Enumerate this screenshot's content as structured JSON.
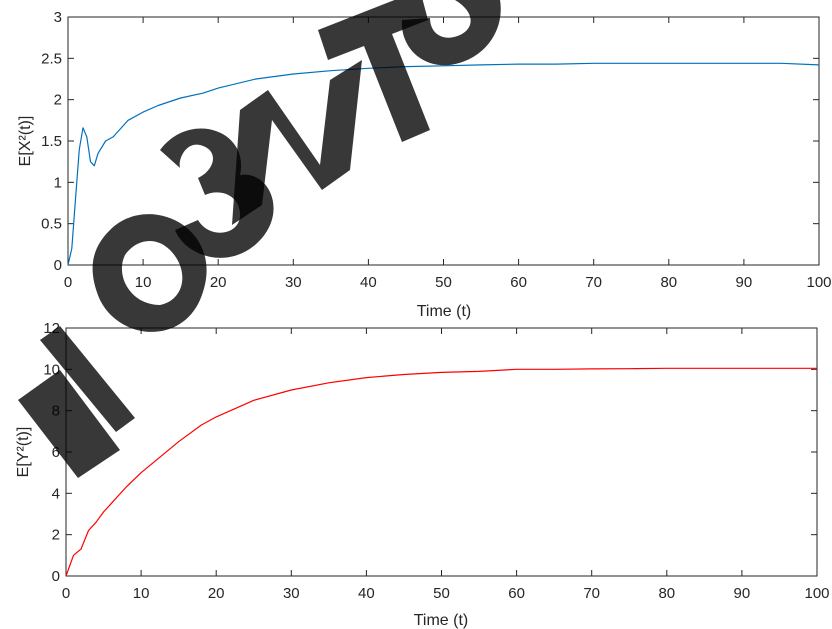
{
  "chart_data": [
    {
      "type": "line",
      "xlabel": "Time (t)",
      "ylabel": "E[X²(t)]",
      "xlim": [
        0,
        100
      ],
      "ylim": [
        0,
        3
      ],
      "xticks": [
        0,
        10,
        20,
        30,
        40,
        50,
        60,
        70,
        80,
        90,
        100
      ],
      "yticks": [
        0,
        0.5,
        1,
        1.5,
        2,
        2.5,
        3
      ],
      "grid": false,
      "legend": "none",
      "series": [
        {
          "color": "#0072BD",
          "x": [
            0,
            0.5,
            1,
            1.5,
            2,
            2.5,
            3,
            3.5,
            4,
            5,
            6,
            7,
            8,
            10,
            12,
            15,
            18,
            20,
            25,
            30,
            35,
            40,
            45,
            50,
            55,
            60,
            65,
            70,
            75,
            80,
            85,
            90,
            95,
            100
          ],
          "y": [
            0,
            0.2,
            0.8,
            1.4,
            1.66,
            1.55,
            1.25,
            1.2,
            1.35,
            1.5,
            1.55,
            1.65,
            1.75,
            1.85,
            1.93,
            2.02,
            2.08,
            2.14,
            2.25,
            2.31,
            2.35,
            2.38,
            2.4,
            2.41,
            2.42,
            2.43,
            2.43,
            2.44,
            2.44,
            2.44,
            2.44,
            2.44,
            2.44,
            2.42
          ]
        }
      ]
    },
    {
      "type": "line",
      "xlabel": "Time (t)",
      "ylabel": "E[Y²(t)]",
      "xlim": [
        0,
        100
      ],
      "ylim": [
        0,
        12
      ],
      "xticks": [
        0,
        10,
        20,
        30,
        40,
        50,
        60,
        70,
        80,
        90,
        100
      ],
      "yticks": [
        0,
        2,
        4,
        6,
        8,
        10,
        12
      ],
      "grid": false,
      "legend": "none",
      "series": [
        {
          "color": "#FF0000",
          "x": [
            0,
            1,
            2,
            3,
            4,
            5,
            6,
            8,
            10,
            12,
            15,
            18,
            20,
            25,
            30,
            35,
            40,
            45,
            50,
            55,
            60,
            65,
            70,
            75,
            80,
            85,
            90,
            95,
            100
          ],
          "y": [
            0,
            1,
            1.3,
            2.2,
            2.6,
            3.1,
            3.5,
            4.3,
            5.0,
            5.6,
            6.5,
            7.3,
            7.7,
            8.5,
            9.0,
            9.35,
            9.6,
            9.75,
            9.85,
            9.9,
            10.0,
            10.0,
            10.02,
            10.03,
            10.05,
            10.05,
            10.05,
            10.05,
            10.05
          ]
        }
      ]
    }
  ]
}
